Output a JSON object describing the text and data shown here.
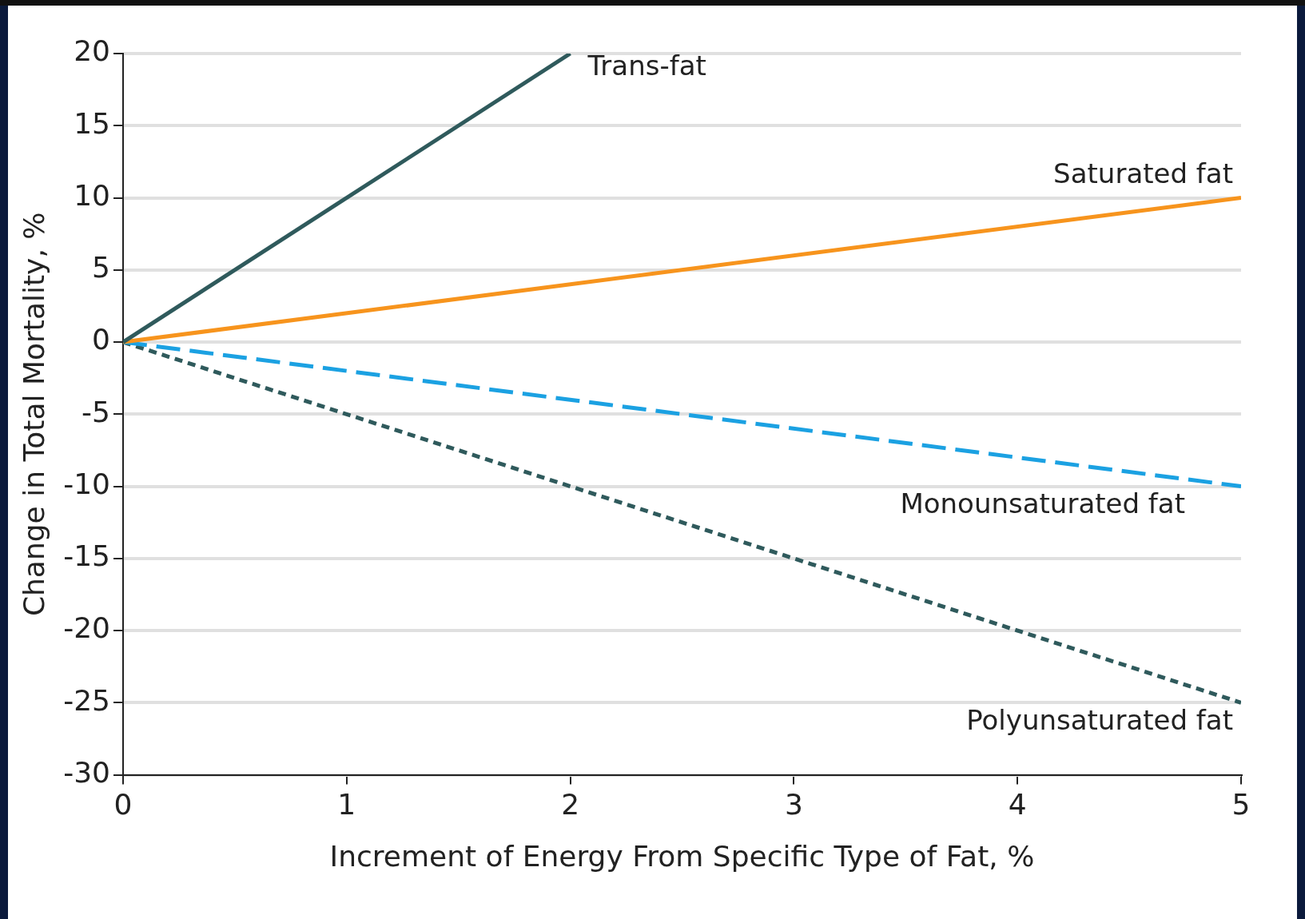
{
  "chart_data": {
    "type": "line",
    "xlabel": "Increment of Energy From Specific Type of Fat, %",
    "ylabel": "Change in Total Mortality, %",
    "xlim": [
      0,
      5
    ],
    "xticks": [
      0,
      1,
      2,
      3,
      4,
      5
    ],
    "ylim": [
      -30,
      20
    ],
    "yticks": [
      -30,
      -25,
      -20,
      -15,
      -10,
      -5,
      0,
      5,
      10,
      15,
      20
    ],
    "grid": "y",
    "legend": false,
    "marker": "none",
    "series": [
      {
        "name": "Trans-fat",
        "color": "#2f5a5c",
        "x": [
          0,
          2
        ],
        "values": [
          0,
          20
        ],
        "line_style": "solid"
      },
      {
        "name": "Saturated fat",
        "color": "#f7941d",
        "x": [
          0,
          5
        ],
        "values": [
          0,
          10
        ],
        "line_style": "solid"
      },
      {
        "name": "Monounsaturated fat",
        "color": "#1ba1e2",
        "x": [
          0,
          5
        ],
        "values": [
          0,
          -10
        ],
        "line_style": "dashed"
      },
      {
        "name": "Polyunsaturated fat",
        "color": "#2f5a5c",
        "x": [
          0,
          5
        ],
        "values": [
          0,
          -25
        ],
        "line_style": "dotted"
      }
    ]
  }
}
